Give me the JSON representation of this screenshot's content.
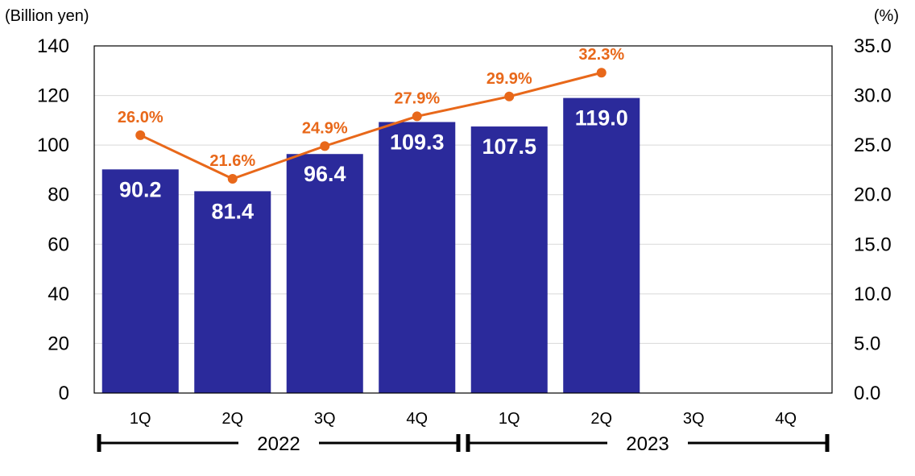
{
  "chart_data": {
    "type": "bar",
    "categories": [
      "1Q",
      "2Q",
      "3Q",
      "4Q",
      "1Q",
      "2Q",
      "3Q",
      "4Q"
    ],
    "groups": [
      {
        "label": "2022",
        "start": 0,
        "end": 3
      },
      {
        "label": "2023",
        "start": 4,
        "end": 7
      }
    ],
    "ylabel_left": "(Billion yen)",
    "ylabel_right": "(%)",
    "ylim_left": [
      0,
      140
    ],
    "ylim_right": [
      0,
      35
    ],
    "yticks_left": [
      "0",
      "20",
      "40",
      "60",
      "80",
      "100",
      "120",
      "140"
    ],
    "yticks_right": [
      "0.0",
      "5.0",
      "10.0",
      "15.0",
      "20.0",
      "25.0",
      "30.0",
      "35.0"
    ],
    "grid": true,
    "series": [
      {
        "type": "bar",
        "axis": "left",
        "values": [
          90.2,
          81.4,
          96.4,
          109.3,
          107.5,
          119.0,
          null,
          null
        ],
        "labels": [
          "90.2",
          "81.4",
          "96.4",
          "109.3",
          "107.5",
          "119.0",
          "",
          ""
        ],
        "color": "#2b2a9b"
      },
      {
        "type": "line",
        "axis": "right",
        "values": [
          26.0,
          21.6,
          24.9,
          27.9,
          29.9,
          32.3,
          null,
          null
        ],
        "labels": [
          "26.0%",
          "21.6%",
          "24.9%",
          "27.9%",
          "29.9%",
          "32.3%",
          "",
          ""
        ],
        "color": "#e8681a"
      }
    ]
  }
}
